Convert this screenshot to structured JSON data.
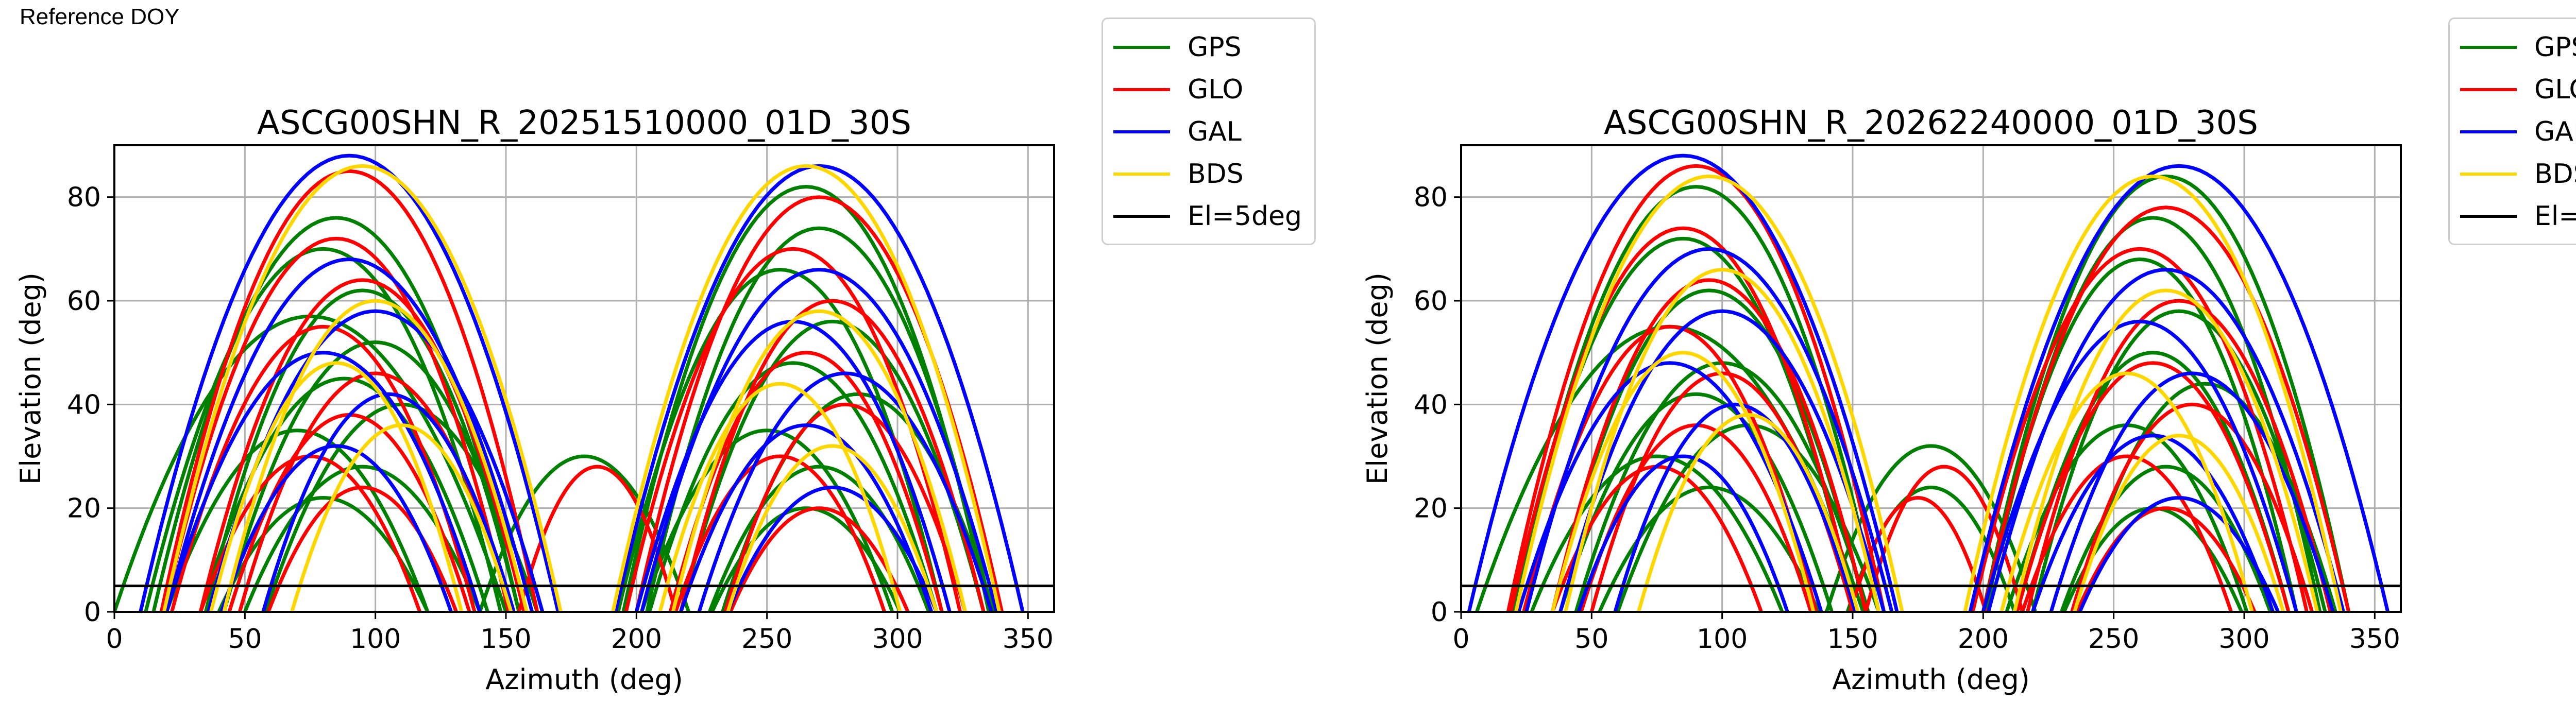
{
  "header": {
    "reference_label": "Reference DOY"
  },
  "colors": {
    "GPS": "#008000",
    "GLO": "#ff0000",
    "GAL": "#0000ff",
    "BDS": "#ffd700",
    "El=5deg": "#000000"
  },
  "legend": {
    "entries": [
      {
        "label": "GPS",
        "color": "#008000"
      },
      {
        "label": "GLO",
        "color": "#ff0000"
      },
      {
        "label": "GAL",
        "color": "#0000ff"
      },
      {
        "label": "BDS",
        "color": "#ffd700"
      },
      {
        "label": "El=5deg",
        "color": "#000000"
      }
    ]
  },
  "chart_data": [
    {
      "type": "scatter",
      "title": "ASCG00SHN_R_20251510000_01D_30S",
      "xlabel": "Azimuth (deg)",
      "ylabel": "Elevation (deg)",
      "xlim": [
        0,
        360
      ],
      "ylim": [
        0,
        90
      ],
      "xticks": [
        0,
        50,
        100,
        150,
        200,
        250,
        300,
        350
      ],
      "yticks": [
        0,
        20,
        40,
        60,
        80
      ],
      "grid": true,
      "legend_position": "outside-top-right",
      "reference_line": {
        "label": "El=5deg",
        "y": 5
      },
      "series": [
        {
          "name": "GPS",
          "color": "#008000",
          "tracks": [
            {
              "c": 85,
              "w": 70,
              "p": 76
            },
            {
              "c": 80,
              "w": 68,
              "p": 70
            },
            {
              "c": 95,
              "w": 60,
              "p": 62
            },
            {
              "c": 75,
              "w": 75,
              "p": 57
            },
            {
              "c": 100,
              "w": 58,
              "p": 52
            },
            {
              "c": 88,
              "w": 55,
              "p": 45
            },
            {
              "c": 110,
              "w": 52,
              "p": 40
            },
            {
              "c": 70,
              "w": 50,
              "p": 35
            },
            {
              "c": 95,
              "w": 45,
              "p": 28
            },
            {
              "c": 80,
              "w": 40,
              "p": 22
            },
            {
              "c": 265,
              "w": 70,
              "p": 82
            },
            {
              "c": 270,
              "w": 66,
              "p": 74
            },
            {
              "c": 255,
              "w": 62,
              "p": 66
            },
            {
              "c": 275,
              "w": 58,
              "p": 56
            },
            {
              "c": 260,
              "w": 55,
              "p": 48
            },
            {
              "c": 285,
              "w": 52,
              "p": 42
            },
            {
              "c": 250,
              "w": 48,
              "p": 35
            },
            {
              "c": 270,
              "w": 42,
              "p": 28
            },
            {
              "c": 265,
              "w": 36,
              "p": 20
            },
            {
              "c": 180,
              "w": 40,
              "p": 30
            }
          ]
        },
        {
          "name": "GLO",
          "color": "#ff0000",
          "tracks": [
            {
              "c": 90,
              "w": 72,
              "p": 85
            },
            {
              "c": 85,
              "w": 66,
              "p": 72
            },
            {
              "c": 95,
              "w": 62,
              "p": 64
            },
            {
              "c": 80,
              "w": 58,
              "p": 55
            },
            {
              "c": 100,
              "w": 52,
              "p": 46
            },
            {
              "c": 90,
              "w": 46,
              "p": 38
            },
            {
              "c": 75,
              "w": 42,
              "p": 30
            },
            {
              "c": 95,
              "w": 36,
              "p": 24
            },
            {
              "c": 270,
              "w": 70,
              "p": 80
            },
            {
              "c": 260,
              "w": 64,
              "p": 70
            },
            {
              "c": 275,
              "w": 58,
              "p": 60
            },
            {
              "c": 265,
              "w": 52,
              "p": 50
            },
            {
              "c": 280,
              "w": 46,
              "p": 40
            },
            {
              "c": 255,
              "w": 40,
              "p": 30
            },
            {
              "c": 270,
              "w": 34,
              "p": 20
            },
            {
              "c": 185,
              "w": 30,
              "p": 28
            }
          ]
        },
        {
          "name": "GAL",
          "color": "#0000ff",
          "tracks": [
            {
              "c": 90,
              "w": 80,
              "p": 88
            },
            {
              "c": 90,
              "w": 70,
              "p": 68
            },
            {
              "c": 100,
              "w": 64,
              "p": 58
            },
            {
              "c": 80,
              "w": 60,
              "p": 50
            },
            {
              "c": 105,
              "w": 48,
              "p": 42
            },
            {
              "c": 85,
              "w": 44,
              "p": 32
            },
            {
              "c": 270,
              "w": 78,
              "p": 86
            },
            {
              "c": 270,
              "w": 68,
              "p": 66
            },
            {
              "c": 260,
              "w": 60,
              "p": 56
            },
            {
              "c": 280,
              "w": 56,
              "p": 46
            },
            {
              "c": 265,
              "w": 48,
              "p": 36
            },
            {
              "c": 275,
              "w": 40,
              "p": 24
            }
          ]
        },
        {
          "name": "BDS",
          "color": "#ffd700",
          "tracks": [
            {
              "c": 95,
              "w": 76,
              "p": 86
            },
            {
              "c": 100,
              "w": 58,
              "p": 60
            },
            {
              "c": 85,
              "w": 48,
              "p": 48
            },
            {
              "c": 110,
              "w": 42,
              "p": 36
            },
            {
              "c": 265,
              "w": 74,
              "p": 86
            },
            {
              "c": 270,
              "w": 56,
              "p": 58
            },
            {
              "c": 255,
              "w": 46,
              "p": 44
            },
            {
              "c": 275,
              "w": 40,
              "p": 32
            }
          ]
        }
      ]
    },
    {
      "type": "scatter",
      "title": "ASCG00SHN_R_20262240000_01D_30S",
      "xlabel": "Azimuth (deg)",
      "ylabel": "Elevation (deg)",
      "xlim": [
        0,
        360
      ],
      "ylim": [
        0,
        90
      ],
      "xticks": [
        0,
        50,
        100,
        150,
        200,
        250,
        300,
        350
      ],
      "yticks": [
        0,
        20,
        40,
        60,
        80
      ],
      "grid": true,
      "legend_position": "outside-top-right",
      "reference_line": {
        "label": "El=5deg",
        "y": 5
      },
      "series": [
        {
          "name": "GPS",
          "color": "#008000",
          "tracks": [
            {
              "c": 90,
              "w": 70,
              "p": 82
            },
            {
              "c": 85,
              "w": 66,
              "p": 72
            },
            {
              "c": 95,
              "w": 60,
              "p": 62
            },
            {
              "c": 80,
              "w": 74,
              "p": 55
            },
            {
              "c": 100,
              "w": 56,
              "p": 48
            },
            {
              "c": 90,
              "w": 52,
              "p": 42
            },
            {
              "c": 110,
              "w": 50,
              "p": 36
            },
            {
              "c": 75,
              "w": 48,
              "p": 30
            },
            {
              "c": 95,
              "w": 42,
              "p": 24
            },
            {
              "c": 270,
              "w": 70,
              "p": 84
            },
            {
              "c": 265,
              "w": 64,
              "p": 76
            },
            {
              "c": 260,
              "w": 60,
              "p": 68
            },
            {
              "c": 275,
              "w": 56,
              "p": 58
            },
            {
              "c": 265,
              "w": 52,
              "p": 50
            },
            {
              "c": 285,
              "w": 50,
              "p": 44
            },
            {
              "c": 255,
              "w": 46,
              "p": 36
            },
            {
              "c": 270,
              "w": 40,
              "p": 28
            },
            {
              "c": 265,
              "w": 34,
              "p": 20
            },
            {
              "c": 180,
              "w": 40,
              "p": 32
            },
            {
              "c": 180,
              "w": 32,
              "p": 24
            }
          ]
        },
        {
          "name": "GLO",
          "color": "#ff0000",
          "tracks": [
            {
              "c": 90,
              "w": 72,
              "p": 86
            },
            {
              "c": 85,
              "w": 66,
              "p": 74
            },
            {
              "c": 95,
              "w": 60,
              "p": 64
            },
            {
              "c": 80,
              "w": 56,
              "p": 55
            },
            {
              "c": 100,
              "w": 50,
              "p": 46
            },
            {
              "c": 90,
              "w": 44,
              "p": 36
            },
            {
              "c": 75,
              "w": 40,
              "p": 28
            },
            {
              "c": 270,
              "w": 70,
              "p": 78
            },
            {
              "c": 260,
              "w": 64,
              "p": 70
            },
            {
              "c": 275,
              "w": 58,
              "p": 60
            },
            {
              "c": 265,
              "w": 52,
              "p": 48
            },
            {
              "c": 280,
              "w": 46,
              "p": 40
            },
            {
              "c": 255,
              "w": 40,
              "p": 30
            },
            {
              "c": 270,
              "w": 34,
              "p": 20
            },
            {
              "c": 185,
              "w": 30,
              "p": 28
            },
            {
              "c": 175,
              "w": 26,
              "p": 22
            }
          ]
        },
        {
          "name": "GAL",
          "color": "#0000ff",
          "tracks": [
            {
              "c": 85,
              "w": 82,
              "p": 88
            },
            {
              "c": 95,
              "w": 70,
              "p": 70
            },
            {
              "c": 100,
              "w": 62,
              "p": 58
            },
            {
              "c": 80,
              "w": 58,
              "p": 48
            },
            {
              "c": 105,
              "w": 46,
              "p": 40
            },
            {
              "c": 85,
              "w": 40,
              "p": 30
            },
            {
              "c": 275,
              "w": 80,
              "p": 86
            },
            {
              "c": 270,
              "w": 68,
              "p": 66
            },
            {
              "c": 260,
              "w": 60,
              "p": 56
            },
            {
              "c": 280,
              "w": 54,
              "p": 46
            },
            {
              "c": 265,
              "w": 46,
              "p": 34
            },
            {
              "c": 275,
              "w": 38,
              "p": 22
            }
          ]
        },
        {
          "name": "BDS",
          "color": "#ffd700",
          "tracks": [
            {
              "c": 95,
              "w": 74,
              "p": 84
            },
            {
              "c": 100,
              "w": 60,
              "p": 66
            },
            {
              "c": 85,
              "w": 50,
              "p": 50
            },
            {
              "c": 110,
              "w": 42,
              "p": 38
            },
            {
              "c": 265,
              "w": 72,
              "p": 84
            },
            {
              "c": 270,
              "w": 58,
              "p": 62
            },
            {
              "c": 255,
              "w": 48,
              "p": 46
            },
            {
              "c": 275,
              "w": 40,
              "p": 34
            }
          ]
        }
      ]
    }
  ]
}
